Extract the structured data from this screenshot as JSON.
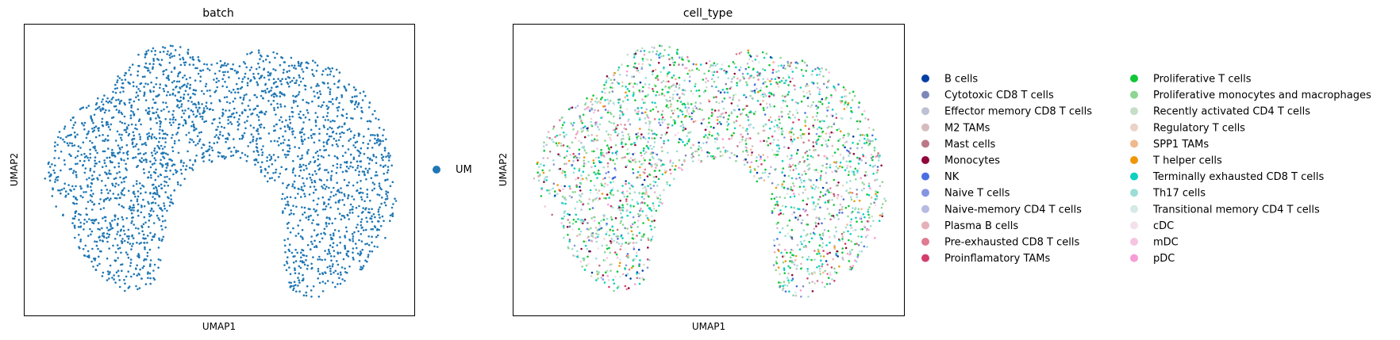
{
  "chart_data": [
    {
      "type": "scatter",
      "title": "batch",
      "xlabel": "UMAP1",
      "ylabel": "UMAP2",
      "grid": false,
      "axis_ticks": false,
      "legend_placement": "right",
      "series": [
        {
          "name": "UM",
          "color": "#1f77b4"
        }
      ]
    },
    {
      "type": "scatter",
      "title": "cell_type",
      "xlabel": "UMAP1",
      "ylabel": "UMAP2",
      "grid": false,
      "axis_ticks": false,
      "legend_placement": "right",
      "series": [
        {
          "name": "B cells",
          "color": "#023fa5"
        },
        {
          "name": "Cytotoxic CD8 T cells",
          "color": "#7d87b9"
        },
        {
          "name": "Effector memory CD8 T cells",
          "color": "#bec1d4"
        },
        {
          "name": "M2 TAMs",
          "color": "#d6bcc0"
        },
        {
          "name": "Mast cells",
          "color": "#bb7784"
        },
        {
          "name": "Monocytes",
          "color": "#8e063b"
        },
        {
          "name": "NK",
          "color": "#4a6fe3"
        },
        {
          "name": "Naive T cells",
          "color": "#8595e1"
        },
        {
          "name": "Naive-memory CD4 T cells",
          "color": "#b5bbe3"
        },
        {
          "name": "Plasma B cells",
          "color": "#e6afb9"
        },
        {
          "name": "Pre-exhausted CD8 T cells",
          "color": "#e07b91"
        },
        {
          "name": "Proinflamatory TAMs",
          "color": "#d33f6a"
        },
        {
          "name": "Proliferative T cells",
          "color": "#11c638"
        },
        {
          "name": "Proliferative monocytes and macrophages",
          "color": "#8dd593"
        },
        {
          "name": "Recently activated CD4 T cells",
          "color": "#c6dec7"
        },
        {
          "name": "Regulatory T cells",
          "color": "#ead3c6"
        },
        {
          "name": "SPP1 TAMs",
          "color": "#f0b98d"
        },
        {
          "name": "T helper cells",
          "color": "#ef9708"
        },
        {
          "name": "Terminally exhausted CD8 T cells",
          "color": "#0fcfc0"
        },
        {
          "name": "Th17 cells",
          "color": "#9cded6"
        },
        {
          "name": "Transitional memory CD4 T cells",
          "color": "#d5eae7"
        },
        {
          "name": "cDC",
          "color": "#f3e1eb"
        },
        {
          "name": "mDC",
          "color": "#f6c4e1"
        },
        {
          "name": "pDC",
          "color": "#f79cd4"
        }
      ],
      "dominant_series": [
        "Terminally exhausted CD8 T cells",
        "Proliferative T cells",
        "Proliferative monocytes and macrophages",
        "Th17 cells"
      ]
    }
  ]
}
